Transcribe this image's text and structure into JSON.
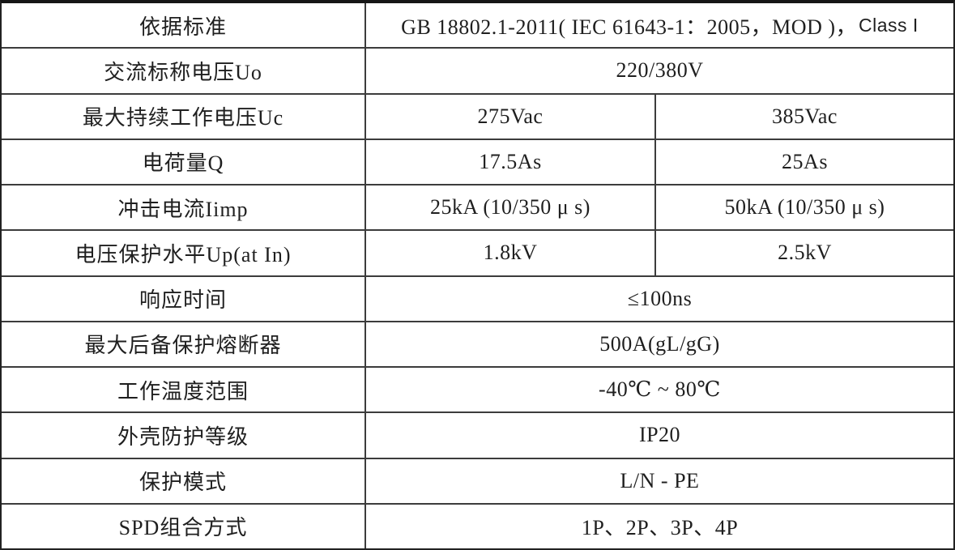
{
  "table": {
    "title_semantic": "SPD electrical specifications table",
    "colors": {
      "border": "#3c3c3c",
      "outer_border": "#222222",
      "text": "#1f1f1f",
      "background": "#ffffff"
    },
    "rows": [
      {
        "label": "依据标准",
        "value": "GB 18802.1-2011( IEC 61643-1：2005，MOD )，",
        "value_suffix": "Class I",
        "span": true
      },
      {
        "label": "交流标称电压Uo",
        "value": "220/380V",
        "span": true
      },
      {
        "label": "最大持续工作电压Uc",
        "value1": "275Vac",
        "value2": "385Vac",
        "span": false
      },
      {
        "label": "电荷量Q",
        "value1": "17.5As",
        "value2": "25As",
        "span": false
      },
      {
        "label": "冲击电流Iimp",
        "value1": "25kA (10/350 μ s)",
        "value2": "50kA (10/350 μ s)",
        "span": false
      },
      {
        "label": "电压保护水平Up(at In)",
        "value1": "1.8kV",
        "value2": "2.5kV",
        "span": false
      },
      {
        "label": "响应时间",
        "value": "≤100ns",
        "span": true
      },
      {
        "label": "最大后备保护熔断器",
        "value": "500A(gL/gG)",
        "span": true
      },
      {
        "label": "工作温度范围",
        "value": "-40℃ ~ 80℃",
        "span": true
      },
      {
        "label": "外壳防护等级",
        "value": "IP20",
        "span": true
      },
      {
        "label": "保护模式",
        "value": "L/N - PE",
        "span": true
      },
      {
        "label": "SPD组合方式",
        "value": "1P、2P、3P、4P",
        "span": true
      }
    ]
  }
}
